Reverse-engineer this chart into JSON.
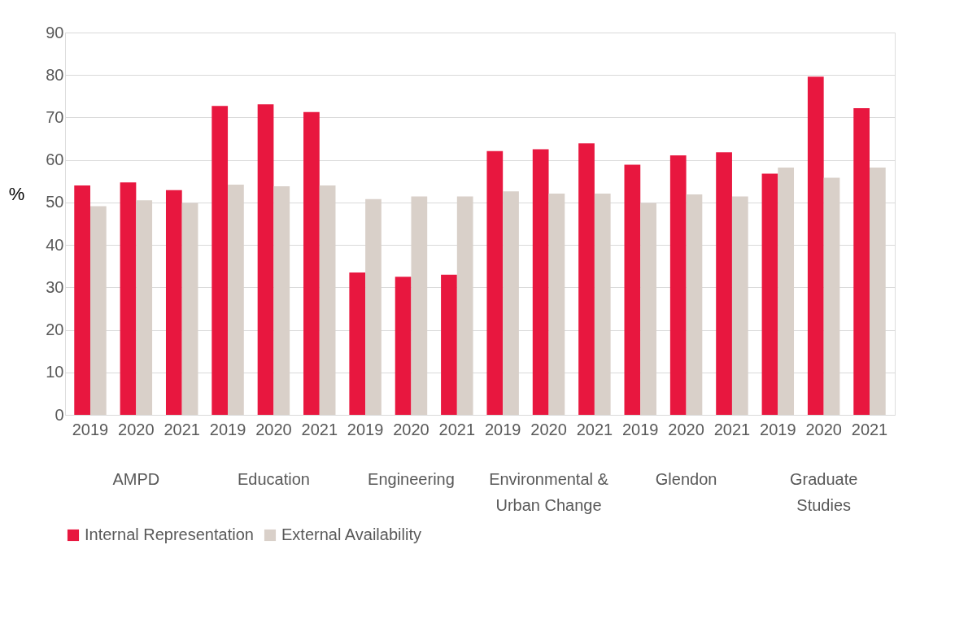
{
  "chart_data": {
    "type": "bar",
    "ylabel": "%",
    "categories": [
      "2019",
      "2020",
      "2021",
      "2019",
      "2020",
      "2021",
      "2019",
      "2020",
      "2021",
      "2019",
      "2020",
      "2021",
      "2019",
      "2020",
      "2021",
      "2019",
      "2020",
      "2021"
    ],
    "series": [
      {
        "name": "Internal Representation",
        "color": "#e8173f",
        "values": [
          54.0,
          54.7,
          52.9,
          72.7,
          73.1,
          71.3,
          33.5,
          32.5,
          33.0,
          62.1,
          62.5,
          63.9,
          58.9,
          61.1,
          61.8,
          56.8,
          79.6,
          72.2
        ]
      },
      {
        "name": "External Availability",
        "color": "#d9d0c9",
        "values": [
          49.1,
          50.5,
          49.9,
          54.2,
          53.8,
          54.0,
          50.8,
          51.4,
          51.4,
          52.6,
          52.1,
          52.1,
          49.9,
          51.9,
          51.4,
          58.2,
          55.8,
          58.2
        ]
      }
    ],
    "annotations": [
      "AMPD",
      "Education",
      "Engineering",
      "Environmental &\nUrban Change",
      "Glendon",
      "Graduate\nStudies"
    ],
    "ylim": [
      0,
      90
    ],
    "yticks": [
      0,
      10,
      20,
      30,
      40,
      50,
      60,
      70,
      80,
      90
    ],
    "grid": "y",
    "legend": "bottom"
  }
}
